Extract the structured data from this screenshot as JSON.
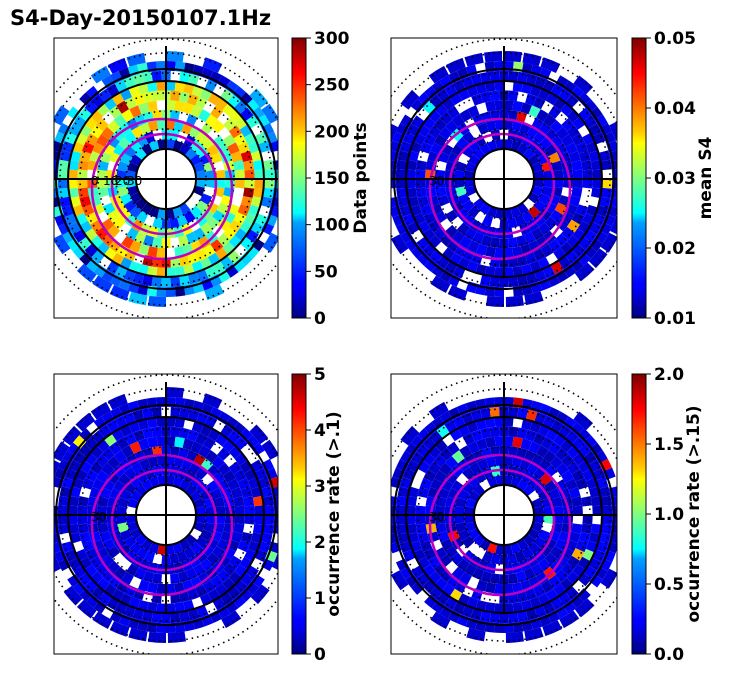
{
  "chart_data": {
    "type": "heatmap",
    "title": "S4-Day-20150107.1Hz",
    "panels": [
      {
        "id": "data-points",
        "colorbar_label": "Data points",
        "ticks": [
          "0",
          "50",
          "100",
          "150",
          "200",
          "250",
          "300"
        ],
        "range": [
          0,
          300
        ],
        "inner_labels": [
          "0",
          "10",
          "20",
          "30"
        ],
        "level": "high"
      },
      {
        "id": "mean-s4",
        "colorbar_label": "mean S4",
        "ticks": [
          "0.01",
          "0.02",
          "0.03",
          "0.04",
          "0.05"
        ],
        "range": [
          0.01,
          0.05
        ],
        "inner_labels": [
          "30"
        ],
        "level": "low"
      },
      {
        "id": "occurrence-1",
        "colorbar_label": "occurrence rate (>.1)",
        "ticks": [
          "0",
          "1",
          "2",
          "3",
          "4",
          "5"
        ],
        "range": [
          0,
          5
        ],
        "inner_labels": [
          "30"
        ],
        "level": "low"
      },
      {
        "id": "occurrence-15",
        "colorbar_label": "occurrence rate (>.15)",
        "ticks": [
          "0.0",
          "0.5",
          "1.0",
          "1.5",
          "2.0"
        ],
        "range": [
          0,
          2
        ],
        "inner_labels": [
          "30"
        ],
        "level": "low"
      }
    ]
  }
}
